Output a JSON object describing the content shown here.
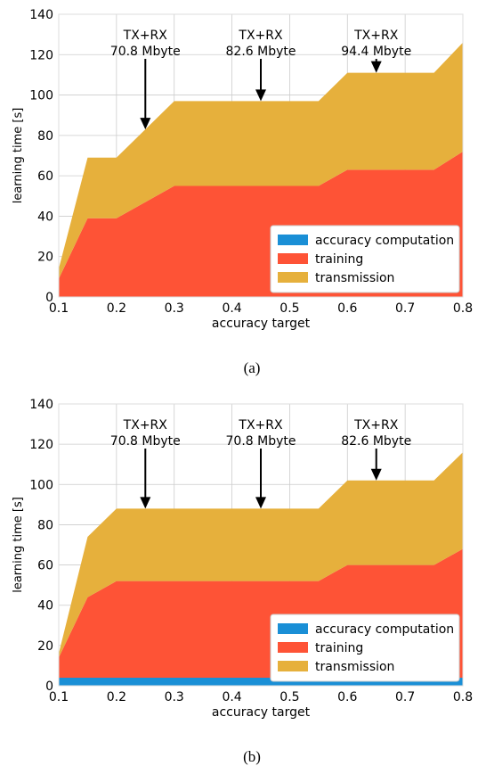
{
  "chart_data": [
    {
      "type": "area",
      "stacked": true,
      "caption": "(a)",
      "xlabel": "accuracy target",
      "ylabel": "learning time [s]",
      "xlim": [
        0.1,
        0.8
      ],
      "ylim": [
        0,
        140
      ],
      "xticks": [
        "0.1",
        "0.2",
        "0.3",
        "0.4",
        "0.5",
        "0.6",
        "0.7",
        "0.8"
      ],
      "yticks": [
        "0",
        "20",
        "40",
        "60",
        "80",
        "100",
        "120",
        "140"
      ],
      "grid": true,
      "legend_position": "bottom-right",
      "x": [
        0.1,
        0.15,
        0.2,
        0.3,
        0.4,
        0.45,
        0.55,
        0.6,
        0.7,
        0.75,
        0.8
      ],
      "series": [
        {
          "name": "accuracy computation",
          "color": "#1a8fd6",
          "values": [
            0,
            0,
            0,
            0,
            0,
            0,
            0,
            0,
            0,
            0,
            0
          ]
        },
        {
          "name": "training",
          "color": "#fe5336",
          "values": [
            9,
            39,
            39,
            55,
            55,
            55,
            55,
            63,
            63,
            63,
            72
          ]
        },
        {
          "name": "transmission",
          "color": "#e6b03c",
          "values": [
            5,
            30,
            30,
            42,
            42,
            42,
            42,
            48,
            48,
            48,
            54
          ]
        }
      ],
      "annotations": [
        {
          "x": 0.25,
          "arrow_tip_y": 83,
          "line1": "TX+RX",
          "line2": "70.8 Mbyte"
        },
        {
          "x": 0.45,
          "arrow_tip_y": 97,
          "line1": "TX+RX",
          "line2": "82.6 Mbyte"
        },
        {
          "x": 0.65,
          "arrow_tip_y": 111,
          "line1": "TX+RX",
          "line2": "94.4 Mbyte"
        }
      ]
    },
    {
      "type": "area",
      "stacked": true,
      "caption": "(b)",
      "xlabel": "accuracy target",
      "ylabel": "learning time [s]",
      "xlim": [
        0.1,
        0.8
      ],
      "ylim": [
        0,
        140
      ],
      "xticks": [
        "0.1",
        "0.2",
        "0.3",
        "0.4",
        "0.5",
        "0.6",
        "0.7",
        "0.8"
      ],
      "yticks": [
        "0",
        "20",
        "40",
        "60",
        "80",
        "100",
        "120",
        "140"
      ],
      "grid": true,
      "legend_position": "bottom-right",
      "x": [
        0.1,
        0.15,
        0.2,
        0.3,
        0.4,
        0.45,
        0.55,
        0.6,
        0.7,
        0.75,
        0.8
      ],
      "series": [
        {
          "name": "accuracy computation",
          "color": "#1a8fd6",
          "values": [
            4,
            4,
            4,
            4,
            4,
            4,
            4,
            4,
            4,
            4,
            4
          ]
        },
        {
          "name": "training",
          "color": "#fe5336",
          "values": [
            10,
            40,
            48,
            48,
            48,
            48,
            48,
            56,
            56,
            56,
            64
          ]
        },
        {
          "name": "transmission",
          "color": "#e6b03c",
          "values": [
            2,
            30,
            36,
            36,
            36,
            36,
            36,
            42,
            42,
            42,
            48
          ]
        }
      ],
      "annotations": [
        {
          "x": 0.25,
          "arrow_tip_y": 88,
          "line1": "TX+RX",
          "line2": "70.8 Mbyte"
        },
        {
          "x": 0.45,
          "arrow_tip_y": 88,
          "line1": "TX+RX",
          "line2": "70.8 Mbyte"
        },
        {
          "x": 0.65,
          "arrow_tip_y": 102,
          "line1": "TX+RX",
          "line2": "82.6 Mbyte"
        }
      ]
    }
  ]
}
